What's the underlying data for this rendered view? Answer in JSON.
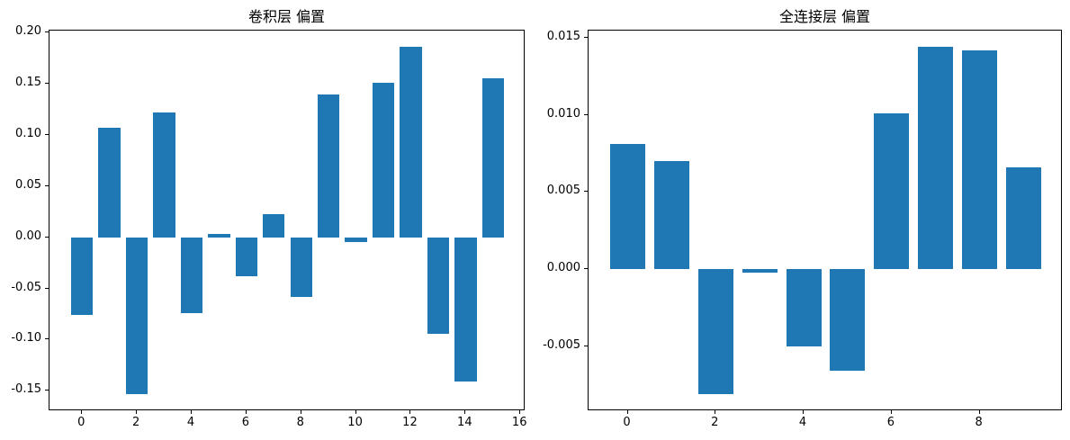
{
  "figure": {
    "background": "#ffffff",
    "bar_color": "#1f77b4",
    "axis_color": "#000000",
    "text_color": "#000000"
  },
  "chart_data": [
    {
      "type": "bar",
      "title": "卷积层 偏置",
      "xlabel": "",
      "ylabel": "",
      "x": [
        0,
        1,
        2,
        3,
        4,
        5,
        6,
        7,
        8,
        9,
        10,
        11,
        12,
        13,
        14,
        15
      ],
      "values": [
        -0.076,
        0.107,
        -0.153,
        0.122,
        -0.074,
        0.0035,
        -0.038,
        0.023,
        -0.058,
        0.14,
        -0.0045,
        0.151,
        0.186,
        -0.094,
        -0.141,
        0.155
      ],
      "bar_width": 0.8,
      "xlim": [
        -1.19,
        16.19
      ],
      "ylim": [
        -0.17,
        0.202
      ],
      "x_ticks": [
        0,
        2,
        4,
        6,
        8,
        10,
        12,
        14,
        16
      ],
      "y_ticks": [
        0.2,
        0.15,
        0.1,
        0.05,
        0.0,
        -0.05,
        -0.1,
        -0.15
      ],
      "x_tick_labels": [
        "0",
        "2",
        "4",
        "6",
        "8",
        "10",
        "12",
        "14",
        "16"
      ],
      "y_tick_labels": [
        "0.20",
        "0.15",
        "0.10",
        "0.05",
        "0.00",
        "-0.05",
        "-0.10",
        "-0.15"
      ],
      "grid": false,
      "legend": "none"
    },
    {
      "type": "bar",
      "title": "全连接层 偏置",
      "xlabel": "",
      "ylabel": "",
      "x": [
        0,
        1,
        2,
        3,
        4,
        5,
        6,
        7,
        8,
        9
      ],
      "values": [
        0.0081,
        0.007,
        -0.0081,
        -0.0002,
        -0.005,
        -0.0066,
        0.0101,
        0.0144,
        0.0142,
        0.0066
      ],
      "bar_width": 0.8,
      "xlim": [
        -0.89,
        9.89
      ],
      "ylim": [
        -0.00922,
        0.01548
      ],
      "x_ticks": [
        0,
        2,
        4,
        6,
        8
      ],
      "y_ticks": [
        0.015,
        0.01,
        0.005,
        0.0,
        -0.005
      ],
      "x_tick_labels": [
        "0",
        "2",
        "4",
        "6",
        "8"
      ],
      "y_tick_labels": [
        "0.015",
        "0.010",
        "0.005",
        "0.000",
        "-0.005"
      ],
      "grid": false,
      "legend": "none"
    }
  ]
}
